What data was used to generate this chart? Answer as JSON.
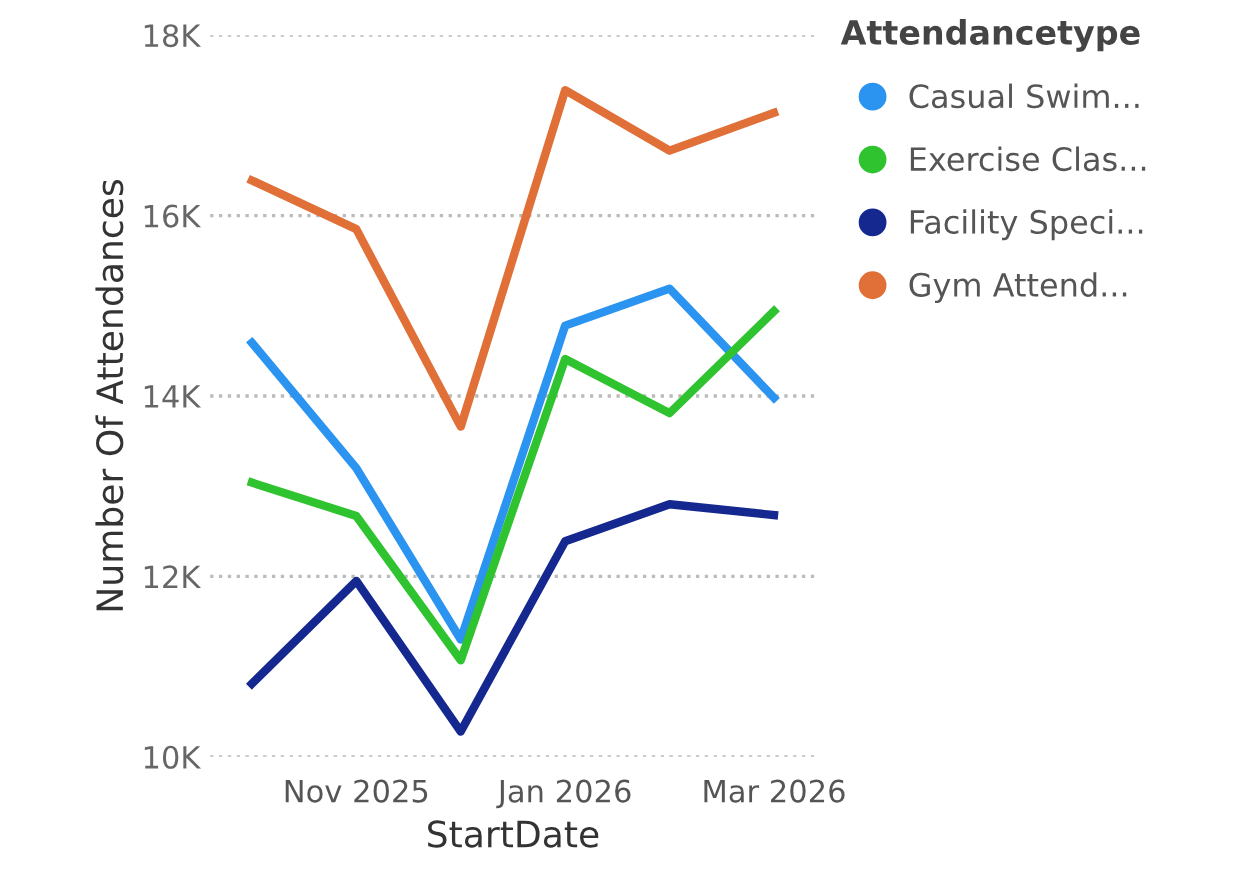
{
  "chart_data": {
    "type": "line",
    "xlabel": "StartDate",
    "ylabel": "Number Of Attendances",
    "legend_title": "Attendancetype",
    "categories": [
      null,
      "Nov 2025",
      null,
      "Jan 2026",
      null,
      "Mar 2026"
    ],
    "series": [
      {
        "name": "Casual Swim...",
        "color": "#2b93f0",
        "values": [
          14590,
          13200,
          11300,
          14780,
          15190,
          13980
        ]
      },
      {
        "name": "Exercise Clas...",
        "color": "#2fc42f",
        "values": [
          13040,
          12670,
          11070,
          14410,
          13810,
          14940
        ]
      },
      {
        "name": "Facility Speci...",
        "color": "#14288f",
        "values": [
          10810,
          11950,
          10280,
          12390,
          12800,
          12680
        ]
      },
      {
        "name": "Gym Attend...",
        "color": "#e07038",
        "values": [
          16390,
          15850,
          13660,
          17390,
          16720,
          17140
        ]
      }
    ],
    "ylim": [
      10000,
      18000
    ],
    "yticks": [
      {
        "value": 10000,
        "label": "10K"
      },
      {
        "value": 12000,
        "label": "12K"
      },
      {
        "value": 14000,
        "label": "14K"
      },
      {
        "value": 16000,
        "label": "16K"
      },
      {
        "value": 18000,
        "label": "18K"
      }
    ],
    "grid": "y",
    "legend": "top right",
    "marker": "none",
    "line_style": "solid"
  }
}
